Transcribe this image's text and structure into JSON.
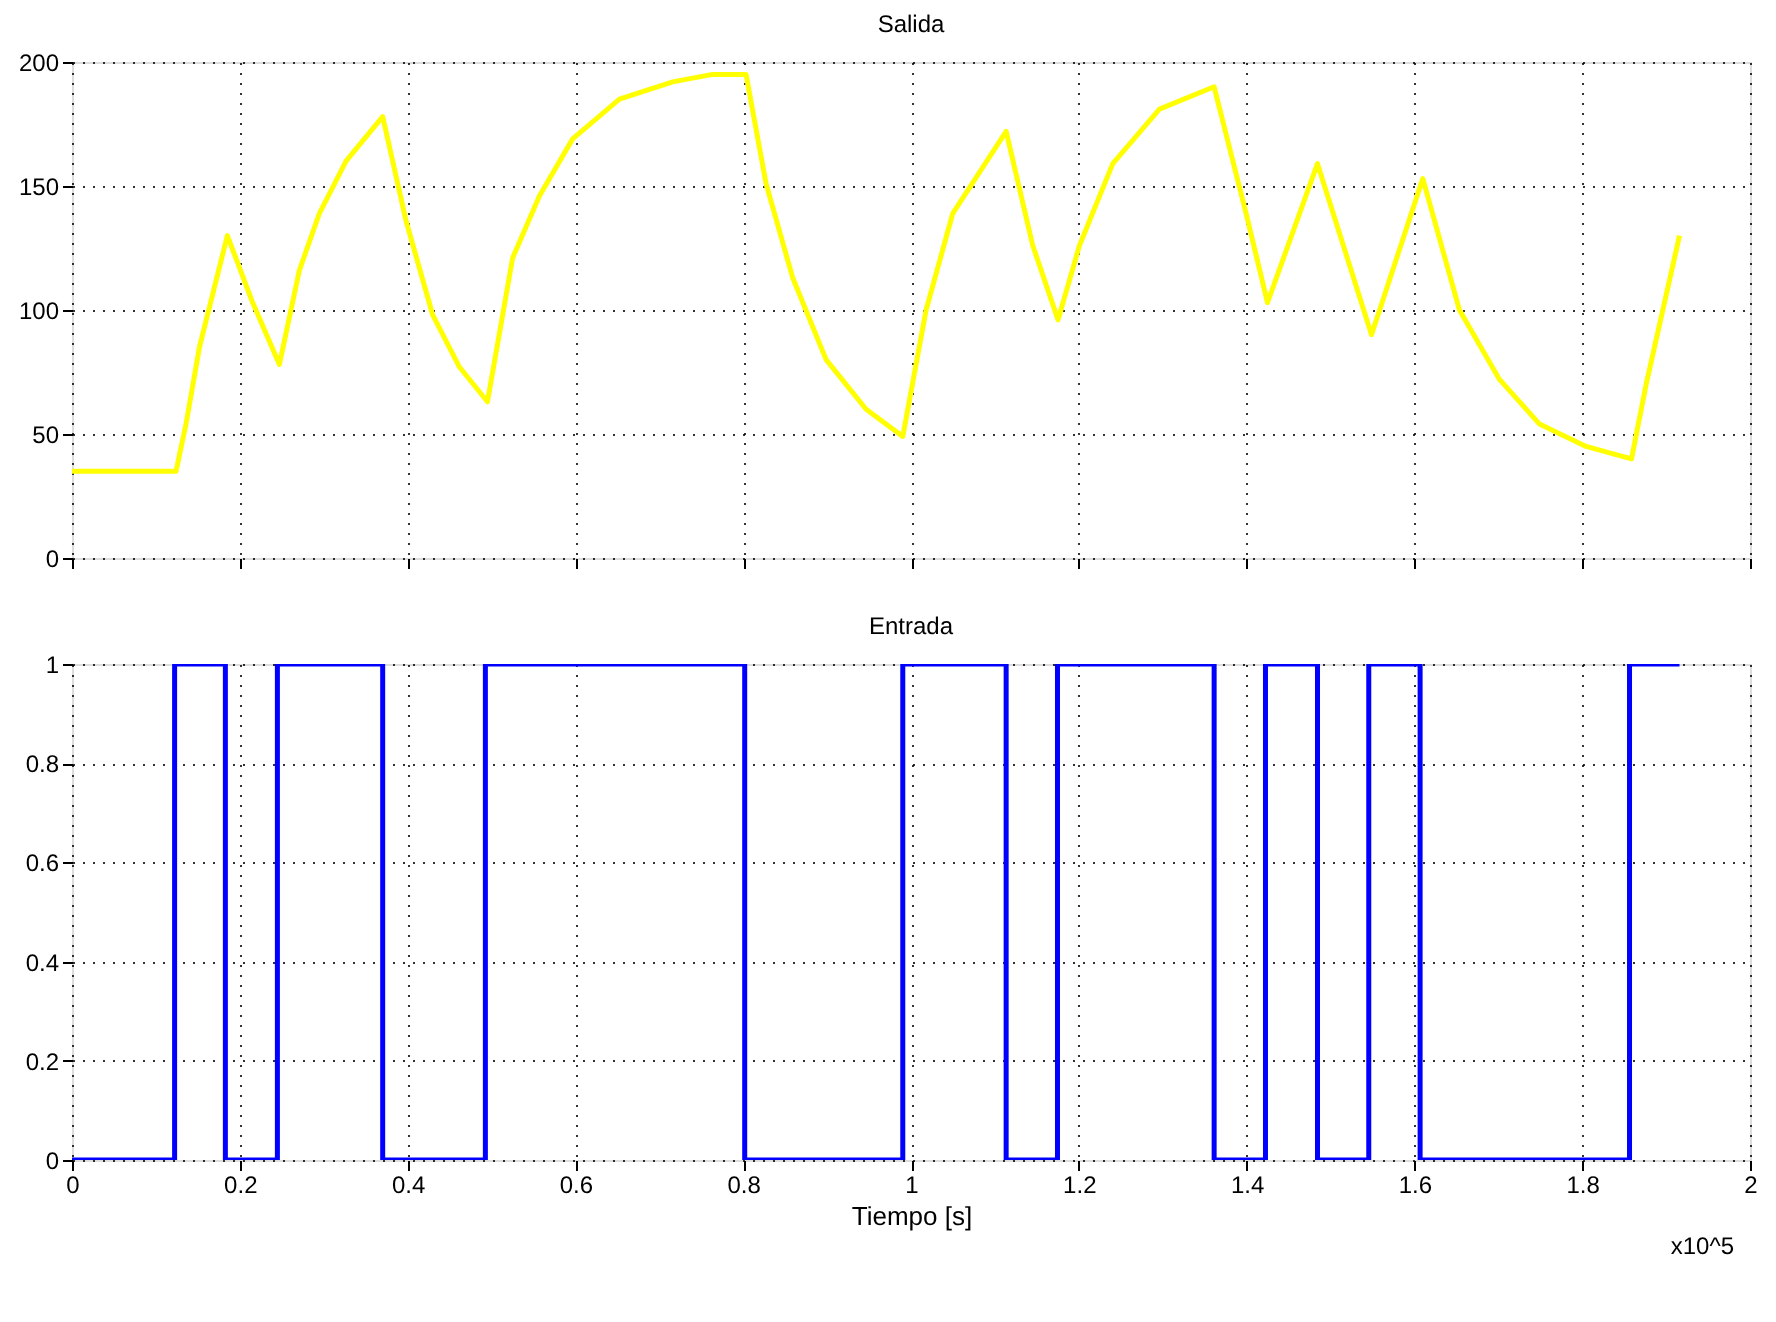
{
  "chart_data": [
    {
      "type": "line",
      "title": "Salida",
      "tick_labels": "y",
      "grid": true,
      "line_style": "solid",
      "xlim": [
        0,
        2
      ],
      "xticks": [
        0,
        0.2,
        0.4,
        0.6,
        0.8,
        1,
        1.2,
        1.4,
        1.6,
        1.8,
        2
      ],
      "ylim": [
        0,
        200
      ],
      "yticks": [
        0,
        50,
        100,
        150,
        200
      ],
      "series": [
        {
          "color": "#ffff00",
          "x": [
            0,
            0.124,
            0.1359,
            0.1519,
            0.1852,
            0.2153,
            0.2472,
            0.271,
            0.2949,
            0.3266,
            0.3703,
            0.3981,
            0.4299,
            0.4618,
            0.4952,
            0.5252,
            0.5571,
            0.5967,
            0.6525,
            0.716,
            0.7636,
            0.8034,
            0.8272,
            0.859,
            0.8988,
            0.9465,
            0.9902,
            1.018,
            1.0498,
            1.1134,
            1.1451,
            1.1753,
            1.2008,
            1.2405,
            1.2961,
            1.3613,
            1.3994,
            1.4249,
            1.4845,
            1.5489,
            1.61,
            1.6537,
            1.7014,
            1.7491,
            1.8046,
            1.8588,
            1.8762,
            1.916
          ],
          "values": [
            35,
            35,
            54,
            85,
            130,
            103,
            78,
            116,
            139,
            160,
            178,
            136,
            98,
            77,
            63,
            121,
            146,
            169,
            185,
            192,
            195,
            195,
            151,
            113,
            80,
            60,
            49,
            100,
            139,
            172,
            126,
            96,
            126,
            159,
            181,
            190,
            139,
            103,
            159,
            90,
            153,
            100,
            72,
            54,
            45,
            40,
            70,
            130
          ]
        }
      ]
    },
    {
      "type": "step",
      "title": "Entrada",
      "xlabel": "Tiempo [s]",
      "grid": true,
      "line_style": "solid",
      "annotations": [
        "x10^5"
      ],
      "xlim": [
        0,
        2
      ],
      "xticks": [
        0,
        0.2,
        0.4,
        0.6,
        0.8,
        1,
        1.2,
        1.4,
        1.6,
        1.8,
        2
      ],
      "ylim": [
        0,
        1
      ],
      "yticks": [
        0,
        0.2,
        0.4,
        0.6,
        0.8,
        1
      ],
      "series": [
        {
          "color": "#0000ff",
          "x": [
            0,
            0.1223,
            0.1828,
            0.2448,
            0.3703,
            0.4927,
            0.8018,
            0.9902,
            1.1134,
            1.1746,
            1.3613,
            1.4225,
            1.4845,
            1.5456,
            1.6068,
            1.8564,
            1.916
          ],
          "values": [
            0,
            1,
            0,
            1,
            0,
            1,
            0,
            1,
            0,
            1,
            0,
            1,
            0,
            1,
            0,
            1,
            1
          ]
        }
      ]
    }
  ]
}
